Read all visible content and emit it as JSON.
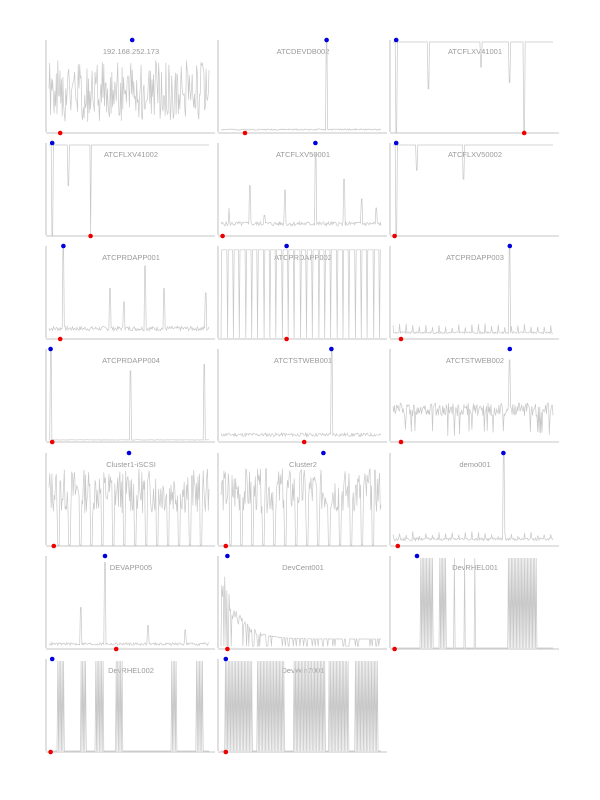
{
  "colors": {
    "line": "#c8c8c8",
    "axis": "#b0b0b0",
    "max_marker": "#0000dd",
    "min_marker": "#ee0000"
  },
  "chart_data": [
    {
      "type": "line",
      "title": "192.168.252.173",
      "pattern": "noisy",
      "seed": 1,
      "max_at": 0.52,
      "min_at": 0.07,
      "base": 0.45,
      "amp": 0.35,
      "ylim": [
        0,
        1
      ]
    },
    {
      "type": "line",
      "title": "ATCDEVDB002",
      "pattern": "spiky",
      "seed": 2,
      "max_at": 0.66,
      "min_at": 0.15,
      "base": 0.02,
      "amp": 0.015,
      "spikes": [
        [
          0.66,
          1.0
        ]
      ],
      "ylim": [
        0,
        1
      ]
    },
    {
      "type": "line",
      "title": "ATCFLXV41001",
      "pattern": "inverted",
      "seed": 3,
      "max_at": 0.02,
      "min_at": 0.82,
      "base": 1.0,
      "spikes": [
        [
          0.02,
          0.0
        ],
        [
          0.22,
          0.48
        ],
        [
          0.55,
          0.72
        ],
        [
          0.73,
          0.55
        ],
        [
          0.82,
          0.0
        ]
      ],
      "ylim": [
        0,
        1
      ]
    },
    {
      "type": "line",
      "title": "ATCFLXV41002",
      "pattern": "inverted",
      "seed": 4,
      "max_at": 0.02,
      "min_at": 0.26,
      "base": 1.0,
      "spikes": [
        [
          0.02,
          0.0
        ],
        [
          0.12,
          0.55
        ],
        [
          0.26,
          0.0
        ]
      ],
      "ylim": [
        0,
        1
      ]
    },
    {
      "type": "line",
      "title": "ATCFLXV50001",
      "pattern": "spiky",
      "seed": 5,
      "max_at": 0.59,
      "min_at": 0.01,
      "base": 0.1,
      "amp": 0.05,
      "spikes": [
        [
          0.05,
          0.3
        ],
        [
          0.18,
          0.55
        ],
        [
          0.27,
          0.22
        ],
        [
          0.4,
          0.5
        ],
        [
          0.59,
          0.9
        ],
        [
          0.77,
          0.62
        ],
        [
          0.88,
          0.4
        ],
        [
          0.97,
          0.3
        ]
      ],
      "ylim": [
        0,
        1
      ]
    },
    {
      "type": "line",
      "title": "ATCFLXV50002",
      "pattern": "inverted",
      "seed": 6,
      "max_at": 0.02,
      "min_at": 0.01,
      "base": 1.0,
      "spikes": [
        [
          0.02,
          0.0
        ],
        [
          0.15,
          0.72
        ],
        [
          0.44,
          0.62
        ]
      ],
      "ylim": [
        0,
        1
      ]
    },
    {
      "type": "line",
      "title": "ATCPRDAPP001",
      "pattern": "spiky",
      "seed": 7,
      "max_at": 0.09,
      "min_at": 0.07,
      "base": 0.08,
      "amp": 0.05,
      "spikes": [
        [
          0.09,
          1.0
        ],
        [
          0.38,
          0.55
        ],
        [
          0.47,
          0.4
        ],
        [
          0.6,
          0.8
        ],
        [
          0.72,
          0.55
        ],
        [
          0.98,
          0.5
        ]
      ],
      "ylim": [
        0,
        1
      ]
    },
    {
      "type": "line",
      "title": "ATCPRDAPP002",
      "pattern": "comb",
      "seed": 8,
      "max_at": 0.41,
      "min_at": 0.41,
      "period": 0.038,
      "ylim": [
        0,
        1
      ]
    },
    {
      "type": "line",
      "title": "ATCPRDAPP003",
      "pattern": "spiky",
      "seed": 9,
      "max_at": 0.73,
      "min_at": 0.05,
      "base": 0.05,
      "amp": 0.02,
      "teeth": 0.05,
      "spikes": [
        [
          0.73,
          1.0
        ]
      ],
      "ylim": [
        0,
        1
      ]
    },
    {
      "type": "line",
      "title": "ATCPRDAPP004",
      "pattern": "spiky",
      "seed": 10,
      "max_at": 0.01,
      "min_at": 0.02,
      "base": 0.01,
      "amp": 0.005,
      "spikes": [
        [
          0.01,
          1.0
        ],
        [
          0.51,
          0.78
        ],
        [
          0.97,
          0.85
        ]
      ],
      "ylim": [
        0,
        1
      ]
    },
    {
      "type": "line",
      "title": "ATCTSTWEB001",
      "pattern": "spiky",
      "seed": 11,
      "max_at": 0.69,
      "min_at": 0.52,
      "base": 0.05,
      "amp": 0.04,
      "spikes": [
        [
          0.69,
          1.0
        ]
      ],
      "ylim": [
        0,
        1
      ]
    },
    {
      "type": "line",
      "title": "ATCTSTWEB002",
      "pattern": "bursty",
      "seed": 12,
      "max_at": 0.73,
      "min_at": 0.05,
      "base": 0.35,
      "amp": 0.15,
      "spikes": [
        [
          0.73,
          0.9
        ]
      ],
      "ylim": [
        0,
        1
      ]
    },
    {
      "type": "line",
      "title": "Cluster1-iSCSI",
      "pattern": "blocky",
      "seed": 13,
      "max_at": 0.5,
      "min_at": 0.03,
      "ylim": [
        0,
        1
      ]
    },
    {
      "type": "line",
      "title": "Cluster2",
      "pattern": "blocky",
      "seed": 14,
      "max_at": 0.64,
      "min_at": 0.03,
      "ylim": [
        0,
        1
      ]
    },
    {
      "type": "line",
      "title": "demo001",
      "pattern": "spiky",
      "seed": 15,
      "max_at": 0.69,
      "min_at": 0.03,
      "base": 0.05,
      "amp": 0.03,
      "teeth": 0.04,
      "spikes": [
        [
          0.69,
          1.0
        ]
      ],
      "ylim": [
        0,
        1
      ]
    },
    {
      "type": "line",
      "title": "DEVAPP005",
      "pattern": "spiky",
      "seed": 16,
      "max_at": 0.35,
      "min_at": 0.42,
      "base": 0.03,
      "amp": 0.03,
      "spikes": [
        [
          0.2,
          0.45
        ],
        [
          0.35,
          0.95
        ],
        [
          0.62,
          0.25
        ],
        [
          0.85,
          0.2
        ]
      ],
      "ylim": [
        0,
        1
      ]
    },
    {
      "type": "line",
      "title": "DevCent001",
      "pattern": "decay",
      "seed": 17,
      "max_at": 0.04,
      "min_at": 0.04,
      "ylim": [
        0,
        1
      ]
    },
    {
      "type": "line",
      "title": "DevRHEL001",
      "pattern": "barcode",
      "seed": 18,
      "max_at": 0.15,
      "min_at": 0.01,
      "blocks": [
        [
          0.17,
          0.25
        ],
        [
          0.29,
          0.33
        ],
        [
          0.38,
          0.39
        ],
        [
          0.44,
          0.45
        ],
        [
          0.51,
          0.52
        ],
        [
          0.72,
          0.9
        ]
      ],
      "ylim": [
        0,
        1
      ]
    },
    {
      "type": "line",
      "title": "DevRHEL002",
      "pattern": "barcode",
      "seed": 19,
      "max_at": 0.02,
      "min_at": 0.01,
      "blocks": [
        [
          0.05,
          0.1
        ],
        [
          0.2,
          0.23
        ],
        [
          0.29,
          0.34
        ],
        [
          0.42,
          0.46
        ],
        [
          0.76,
          0.8
        ],
        [
          0.92,
          0.96
        ]
      ],
      "ylim": [
        0,
        1
      ]
    },
    {
      "type": "line",
      "title": "DevWin7001",
      "pattern": "barcode",
      "seed": 20,
      "max_at": 0.03,
      "min_at": 0.03,
      "blocks": [
        [
          0.02,
          0.2
        ],
        [
          0.22,
          0.4
        ],
        [
          0.45,
          0.65
        ],
        [
          0.67,
          0.8
        ],
        [
          0.84,
          0.98
        ]
      ],
      "ylim": [
        0,
        1
      ]
    }
  ]
}
